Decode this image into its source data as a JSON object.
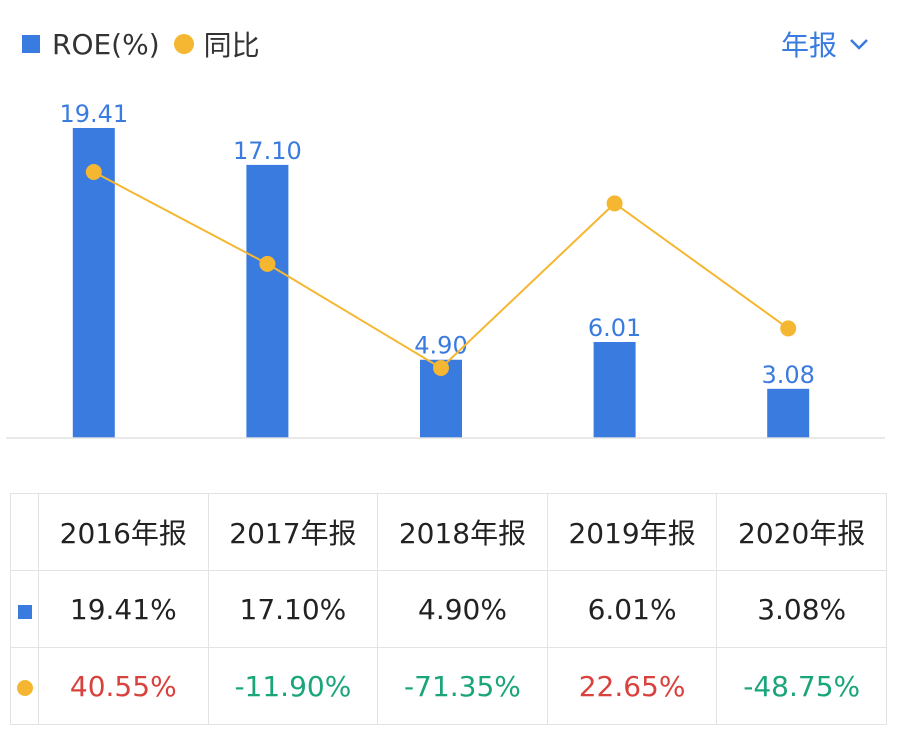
{
  "legend": {
    "bar_label": "ROE(%)",
    "line_label": "同比"
  },
  "period_selector": {
    "label": "年报"
  },
  "colors": {
    "bar": "#3a7be0",
    "line": "#f5b731",
    "positive": "#d9413c",
    "negative": "#1aa57a"
  },
  "chart_data": {
    "type": "bar",
    "categories": [
      "2016年报",
      "2017年报",
      "2018年报",
      "2019年报",
      "2020年报"
    ],
    "series": [
      {
        "name": "ROE(%)",
        "type": "bar",
        "values": [
          19.41,
          17.1,
          4.9,
          6.01,
          3.08
        ],
        "labels": [
          "19.41",
          "17.10",
          "4.90",
          "6.01",
          "3.08"
        ]
      },
      {
        "name": "同比",
        "type": "line",
        "values": [
          40.55,
          -11.9,
          -71.35,
          22.65,
          -48.75
        ]
      }
    ],
    "legend_position": "top-left"
  },
  "table": {
    "headers": [
      "2016年报",
      "2017年报",
      "2018年报",
      "2019年报",
      "2020年报"
    ],
    "roe_row": [
      "19.41%",
      "17.10%",
      "4.90%",
      "6.01%",
      "3.08%"
    ],
    "yoy_row": [
      "40.55%",
      "-11.90%",
      "-71.35%",
      "22.65%",
      "-48.75%"
    ]
  }
}
